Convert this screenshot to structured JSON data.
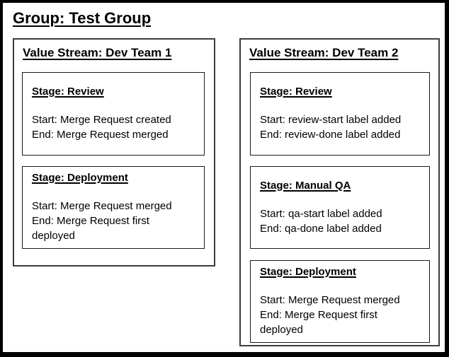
{
  "group": {
    "title": "Group: Test Group"
  },
  "colors": {
    "background": "#ffffff",
    "text": "#000000",
    "outer_border": "#000000",
    "value_stream_border": "#3d3d3d",
    "stage_border": "#1a1a1a"
  },
  "value_streams": [
    {
      "title": "Value Stream: Dev Team 1",
      "stages": [
        {
          "title": "Stage: Review",
          "start": "Start: Merge Request created",
          "end": "End: Merge Request merged"
        },
        {
          "title": "Stage: Deployment",
          "start": "Start: Merge Request merged",
          "end": "End: Merge Request first deployed"
        }
      ]
    },
    {
      "title": "Value Stream: Dev Team 2",
      "stages": [
        {
          "title": "Stage: Review",
          "start": "Start: review-start label added",
          "end": "End: review-done label added"
        },
        {
          "title": "Stage: Manual QA",
          "start": "Start: qa-start label added",
          "end": "End: qa-done label added"
        },
        {
          "title": "Stage: Deployment",
          "start": "Start: Merge Request merged",
          "end": "End: Merge Request first deployed"
        }
      ]
    }
  ]
}
